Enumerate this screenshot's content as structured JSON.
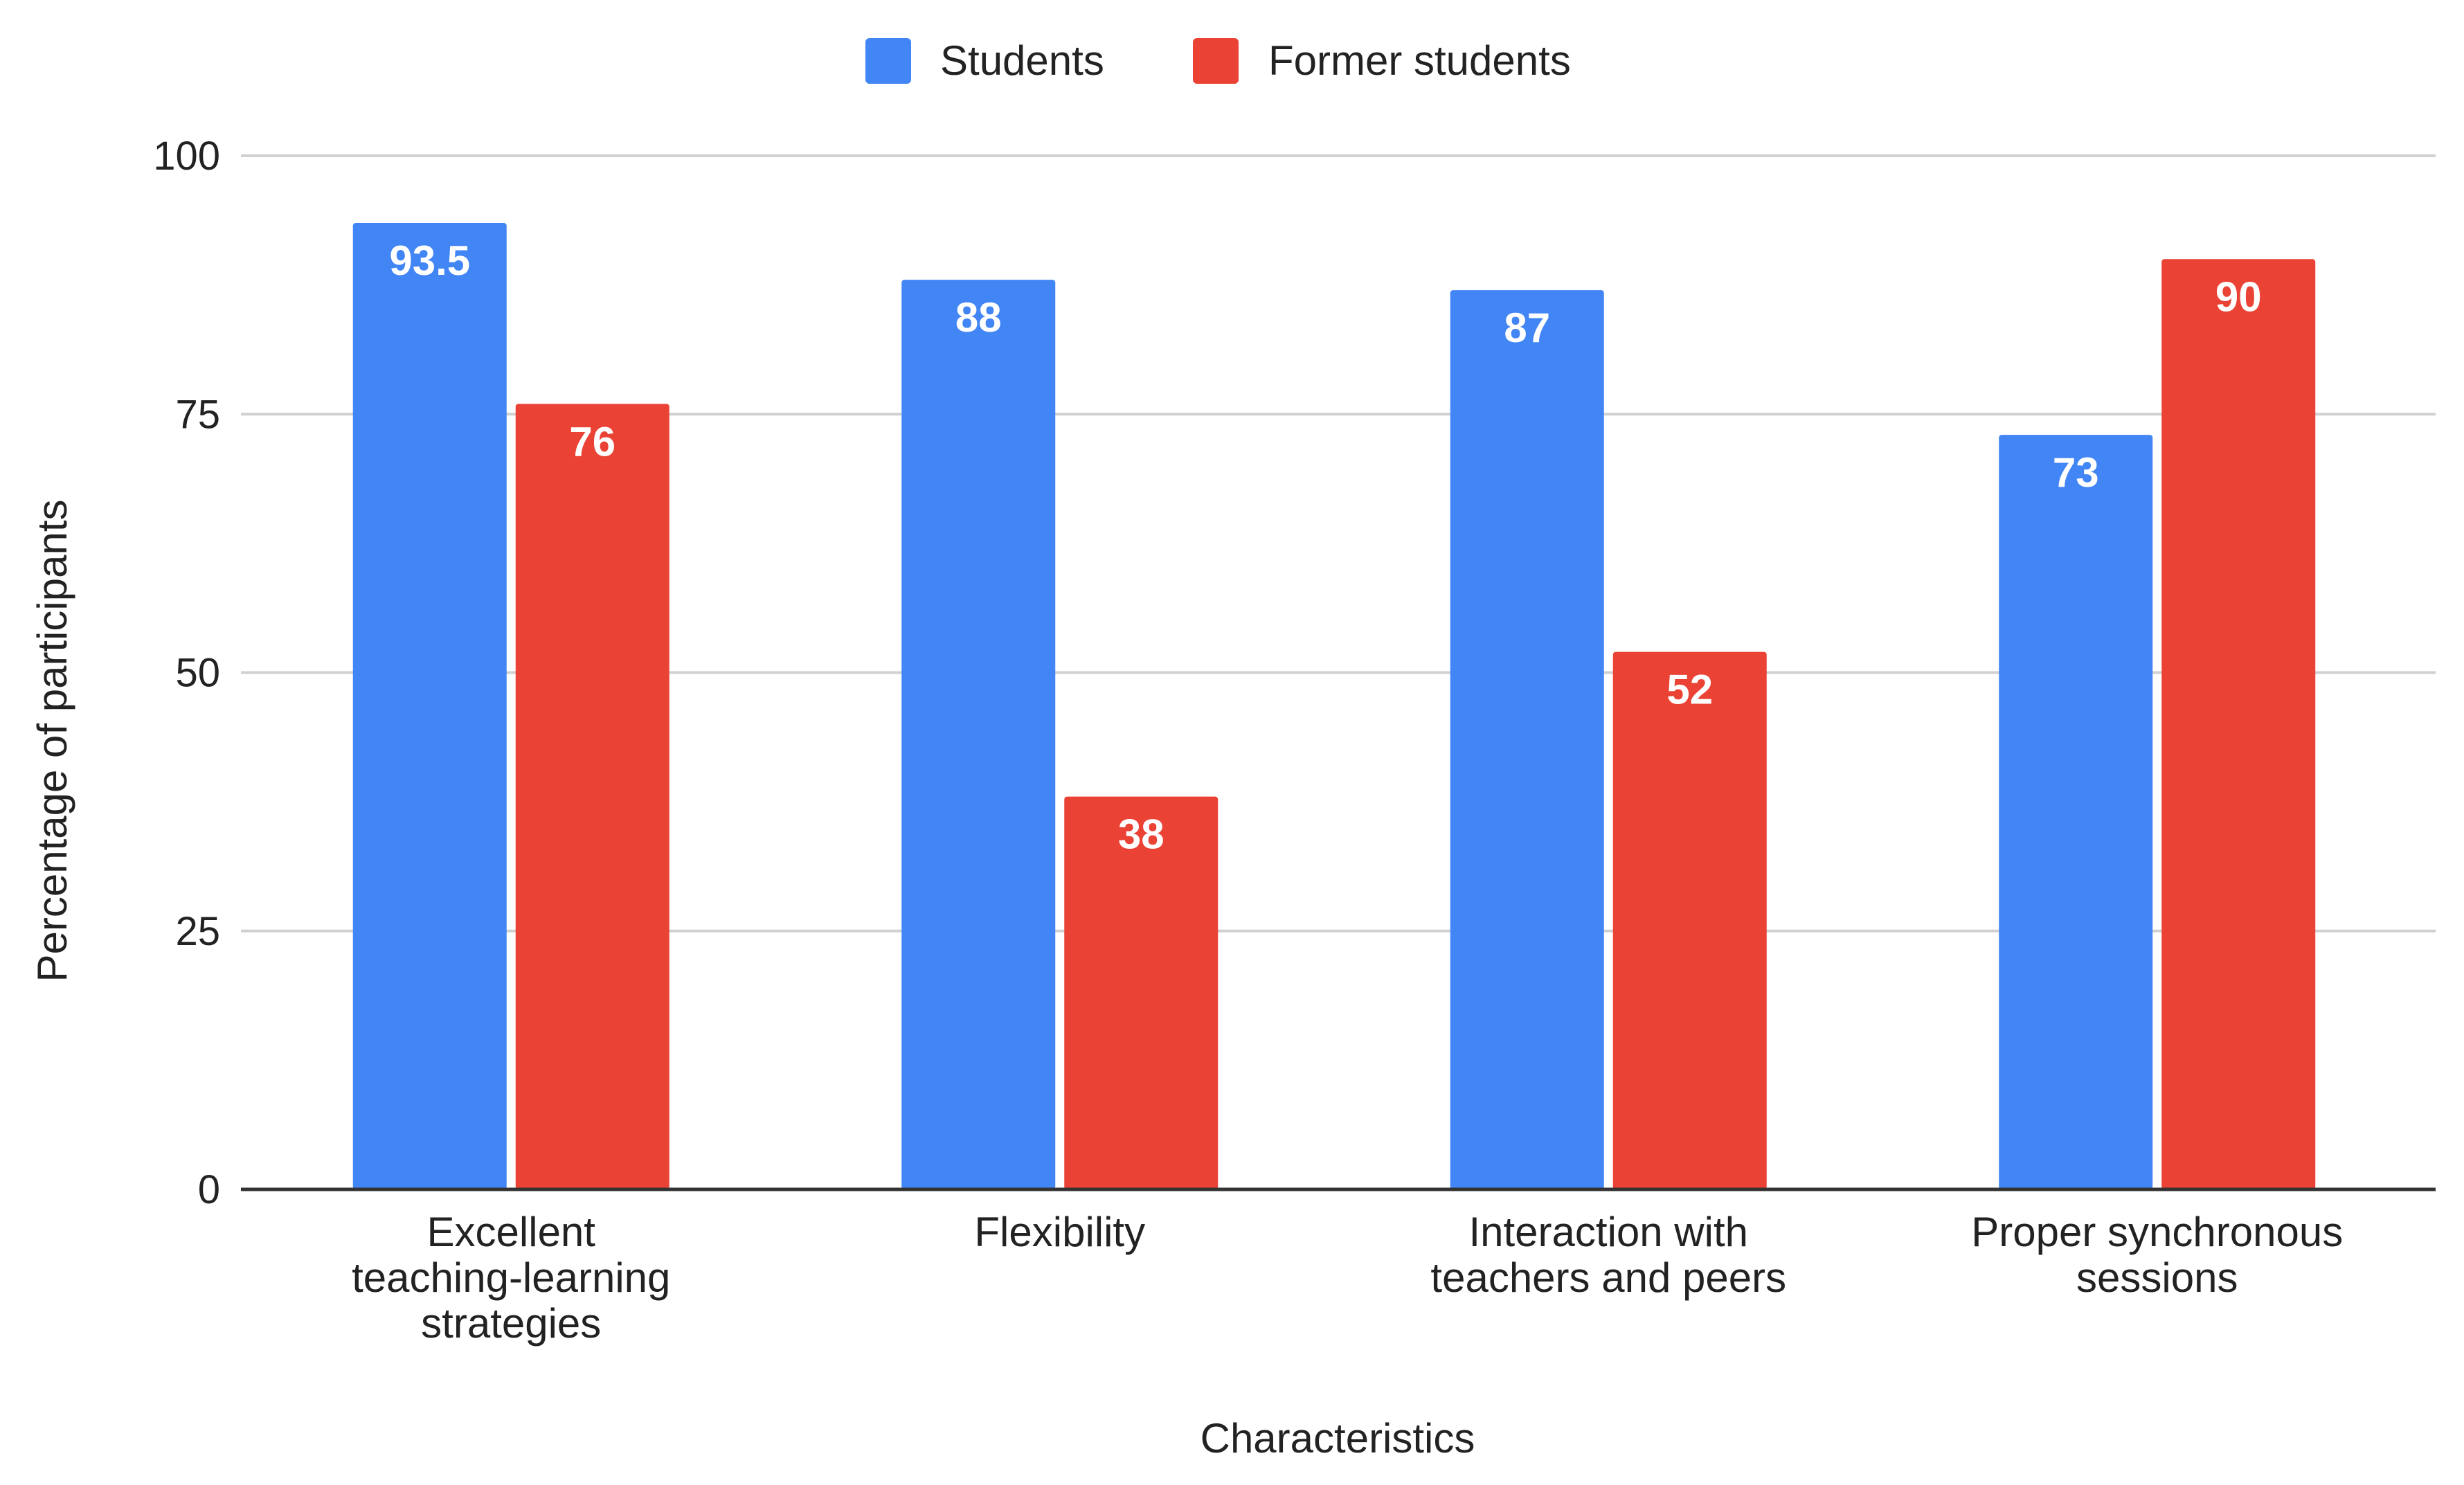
{
  "chart_data": {
    "type": "bar",
    "title": "",
    "xlabel": "Characteristics",
    "ylabel": "Percentage of participants",
    "ylim": [
      0,
      100
    ],
    "yticks": [
      0,
      25,
      50,
      75,
      100
    ],
    "grid": true,
    "legend_position": "top-center",
    "categories": [
      [
        "Excellent",
        "teaching-learning",
        "strategies"
      ],
      [
        "Flexibility"
      ],
      [
        "Interaction with",
        "teachers and peers"
      ],
      [
        "Proper synchronous",
        "sessions"
      ]
    ],
    "series": [
      {
        "name": "Students",
        "color": "#4285f4",
        "values": [
          93.5,
          88,
          87,
          73
        ]
      },
      {
        "name": "Former students",
        "color": "#ea4335",
        "values": [
          76,
          38,
          52,
          90
        ]
      }
    ]
  }
}
